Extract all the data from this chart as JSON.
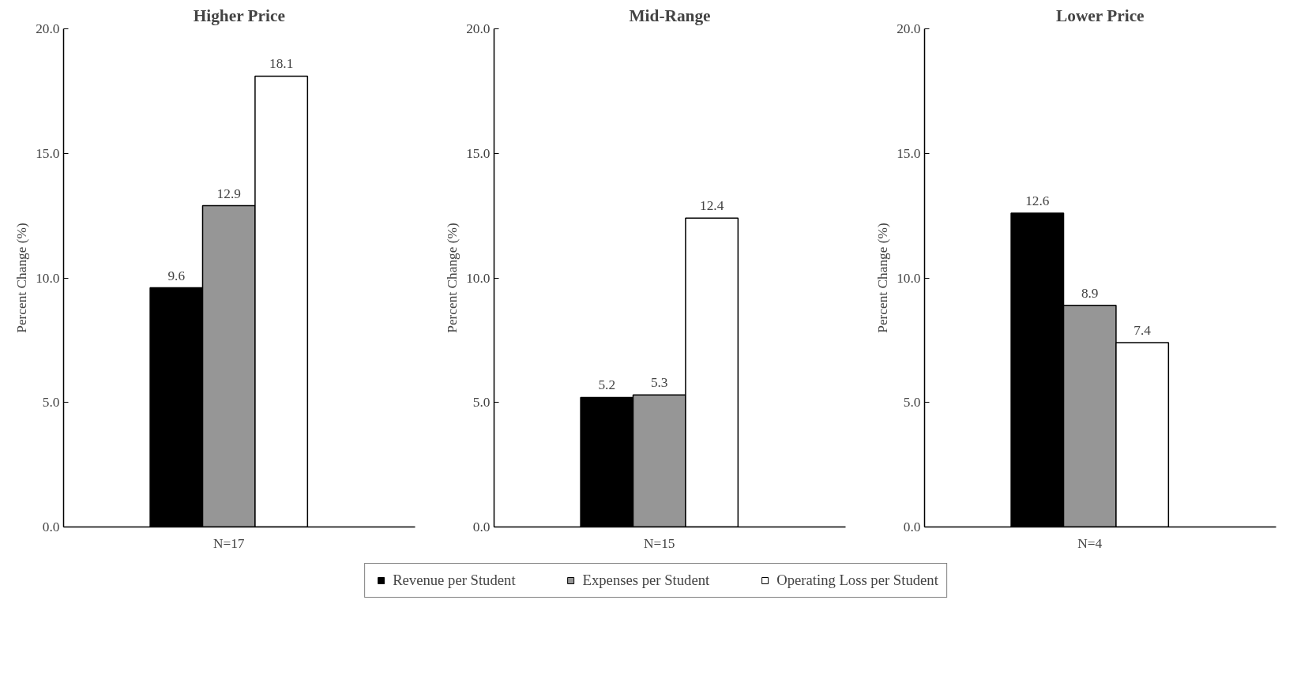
{
  "chart_data": [
    {
      "type": "bar",
      "title": "Higher Price",
      "ylabel": "Percent Change (%)",
      "categories": [
        "N=17"
      ],
      "ylim": [
        0,
        20
      ],
      "yticks": [
        {
          "value": 0,
          "label": "0.0"
        },
        {
          "value": 5,
          "label": "5.0"
        },
        {
          "value": 10,
          "label": "10.0"
        },
        {
          "value": 15,
          "label": "15.0"
        },
        {
          "value": 20,
          "label": "20.0"
        }
      ],
      "grid": false,
      "data_labels": true,
      "legend": "bottom",
      "series": [
        {
          "name": "Revenue per Student",
          "color": "#000000",
          "values": [
            9.6
          ]
        },
        {
          "name": "Expenses per Student",
          "color": "#969696",
          "values": [
            12.9
          ]
        },
        {
          "name": "Operating Loss per Student",
          "color": "#ffffff",
          "values": [
            18.1
          ]
        }
      ]
    },
    {
      "type": "bar",
      "title": "Mid-Range",
      "ylabel": "Percent Change (%)",
      "categories": [
        "N=15"
      ],
      "ylim": [
        0,
        20
      ],
      "yticks": [
        {
          "value": 0,
          "label": "0.0"
        },
        {
          "value": 5,
          "label": "5.0"
        },
        {
          "value": 10,
          "label": "10.0"
        },
        {
          "value": 15,
          "label": "15.0"
        },
        {
          "value": 20,
          "label": "20.0"
        }
      ],
      "data_labels": true,
      "series": [
        {
          "color": "#000000",
          "values": [
            5.2
          ]
        },
        {
          "color": "#969696",
          "values": [
            5.3
          ]
        },
        {
          "color": "#ffffff",
          "values": [
            12.4
          ]
        }
      ]
    },
    {
      "type": "bar",
      "title": "Lower Price",
      "ylabel": "Percent Change (%)",
      "categories": [
        "N=4"
      ],
      "ylim": [
        0,
        20
      ],
      "yticks": [
        {
          "value": 0,
          "label": "0.0"
        },
        {
          "value": 5,
          "label": "5.0"
        },
        {
          "value": 10,
          "label": "10.0"
        },
        {
          "value": 15,
          "label": "15.0"
        },
        {
          "value": 20,
          "label": "20.0"
        }
      ],
      "data_labels": true,
      "series": [
        {
          "color": "#000000",
          "values": [
            12.6
          ]
        },
        {
          "color": "#969696",
          "values": [
            8.9
          ]
        },
        {
          "color": "#ffffff",
          "values": [
            7.4
          ]
        }
      ]
    }
  ]
}
